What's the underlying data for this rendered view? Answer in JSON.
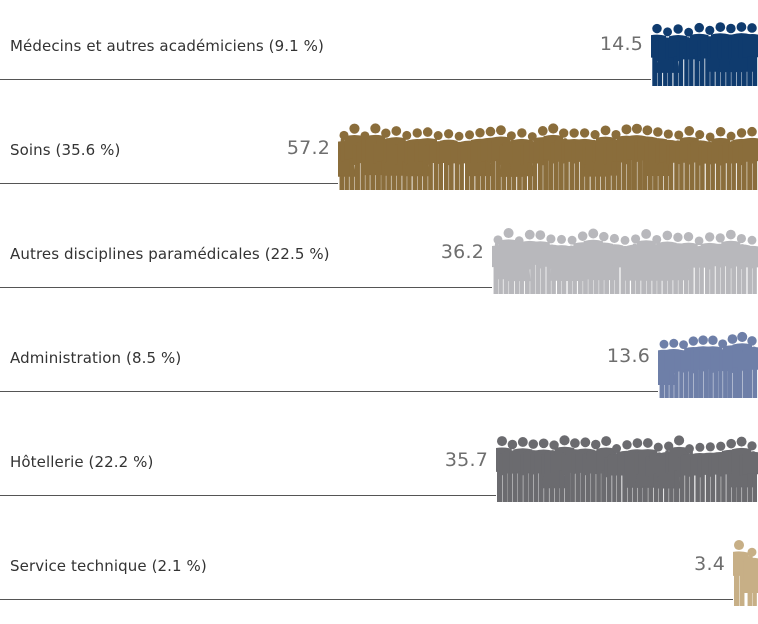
{
  "chart_data": {
    "type": "bar",
    "orientation": "horizontal",
    "categories": [
      "Médecins et autres académiciens (9.1 %)",
      "Soins (35.6 %)",
      "Autres disciplines paramédicales (22.5 %)",
      "Administration (8.5 %)",
      "Hôtellerie (22.2 %)",
      "Service technique (2.1 %)"
    ],
    "values": [
      14.5,
      57.2,
      36.2,
      13.6,
      35.7,
      3.4
    ],
    "value_labels": [
      "14.5",
      "57.2",
      "36.2",
      "13.6",
      "35.7",
      "3.4"
    ],
    "colors": [
      "#0f3b6e",
      "#8a6d3b",
      "#b8b8bc",
      "#6e7fa8",
      "#6b6b6f",
      "#c7af86"
    ],
    "bar_style": "people-silhouettes",
    "grid": false,
    "legend": "none"
  }
}
